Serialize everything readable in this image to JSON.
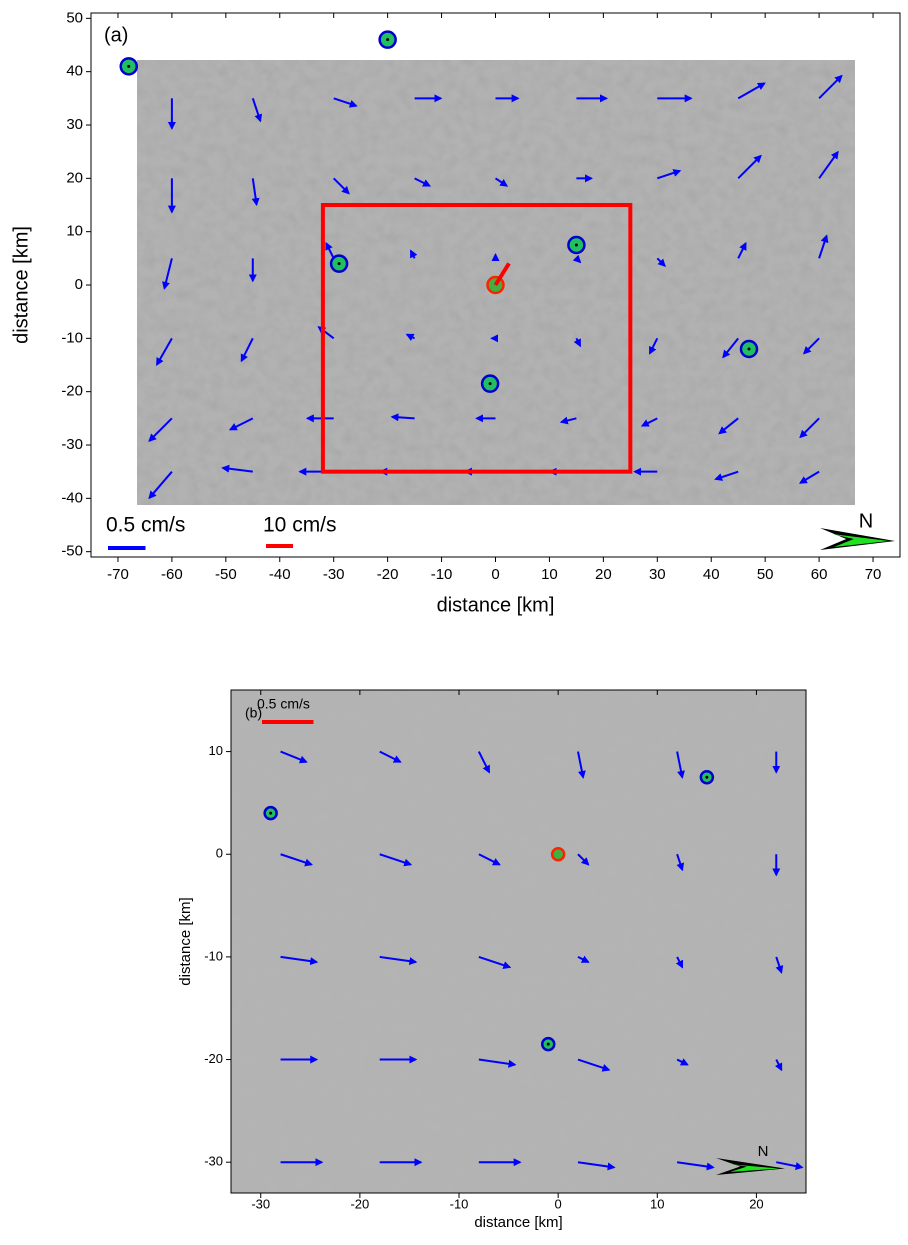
{
  "chart_data": [
    {
      "type": "quiver",
      "title": "(a)",
      "x_label": "distance [km]",
      "y_label": "distance [km]",
      "xlim": [
        -75,
        75
      ],
      "ylim": [
        -51,
        51
      ],
      "xticks": [
        -70,
        -60,
        -50,
        -40,
        -30,
        -20,
        -10,
        0,
        10,
        20,
        30,
        40,
        50,
        60,
        70
      ],
      "yticks": [
        -50,
        -40,
        -30,
        -20,
        -10,
        0,
        10,
        20,
        30,
        40,
        50
      ],
      "vectors": {
        "color": "#0000ff",
        "x": [
          -60,
          -45,
          -30,
          -15,
          0,
          15,
          30,
          45,
          60,
          -60,
          -45,
          -30,
          -15,
          0,
          15,
          30,
          45,
          60,
          -60,
          -45,
          -30,
          -15,
          0,
          15,
          30,
          45,
          60,
          -60,
          -45,
          -30,
          -15,
          0,
          15,
          30,
          45,
          60,
          -60,
          -45,
          -30,
          -15,
          0,
          15,
          30,
          45,
          60,
          -60,
          -45,
          -30,
          -15,
          0,
          15,
          30,
          45,
          60
        ],
        "y": [
          35,
          35,
          35,
          35,
          35,
          35,
          35,
          35,
          35,
          20,
          20,
          20,
          20,
          20,
          20,
          20,
          20,
          20,
          5,
          5,
          5,
          5,
          5,
          5,
          5,
          5,
          5,
          -10,
          -10,
          -10,
          -10,
          -10,
          -10,
          -10,
          -10,
          -10,
          -25,
          -25,
          -25,
          -25,
          -25,
          -25,
          -25,
          -25,
          -25,
          -35,
          -35,
          -35,
          -35,
          -35,
          -35,
          -35,
          -35,
          -35
        ],
        "u": [
          0,
          0.1,
          0.3,
          0.35,
          0.3,
          0.4,
          0.45,
          0.35,
          0.3,
          0,
          0.05,
          0.2,
          0.2,
          0.15,
          0.2,
          0.3,
          0.3,
          0.25,
          -0.1,
          0,
          -0.1,
          -0.05,
          0,
          0.05,
          0.1,
          0.1,
          0.1,
          -0.2,
          -0.15,
          -0.2,
          -0.1,
          -0.05,
          0.05,
          -0.1,
          -0.2,
          -0.2,
          -0.3,
          -0.3,
          -0.35,
          -0.3,
          -0.25,
          -0.2,
          -0.2,
          -0.25,
          -0.25,
          -0.3,
          -0.4,
          -0.45,
          -0.45,
          -0.4,
          -0.35,
          -0.3,
          -0.3,
          -0.25
        ],
        "v": [
          -0.4,
          -0.3,
          -0.1,
          0,
          0,
          0,
          0,
          0.2,
          0.3,
          -0.45,
          -0.35,
          -0.2,
          -0.1,
          -0.1,
          0,
          0.1,
          0.3,
          0.35,
          -0.4,
          -0.3,
          0.2,
          0.1,
          0.05,
          -0.05,
          -0.1,
          0.2,
          0.3,
          -0.35,
          -0.3,
          0.15,
          0.05,
          0,
          -0.1,
          -0.2,
          -0.25,
          -0.2,
          -0.3,
          -0.15,
          0,
          0.02,
          0,
          -0.05,
          -0.1,
          -0.2,
          -0.25,
          -0.35,
          0.05,
          0,
          0,
          0,
          0,
          0,
          -0.1,
          -0.15
        ]
      },
      "current": {
        "color": "#ff0000",
        "x": 0,
        "y": 0,
        "u": 5,
        "v": 8
      },
      "box": {
        "color": "#ff0000",
        "x": [
          -32,
          25
        ],
        "y": [
          -35,
          15
        ]
      },
      "stations": {
        "x": [
          -68,
          -20,
          -29,
          15,
          47,
          -1
        ],
        "y": [
          41,
          46,
          4,
          7.5,
          -12,
          -18.5
        ]
      },
      "reference_station": {
        "x": 0,
        "y": 0
      },
      "scale_bars": [
        {
          "value": 0.5,
          "label": "0.5 cm/s",
          "color": "#0000ff"
        },
        {
          "value": 10,
          "label": "10 cm/s",
          "color": "#ff0000"
        }
      ],
      "north_label": "N"
    },
    {
      "type": "quiver",
      "title": "(b)",
      "x_label": "distance [km]",
      "y_label": "distance [km]",
      "xlim": [
        -33,
        25
      ],
      "ylim": [
        -33,
        16
      ],
      "xticks": [
        -30,
        -20,
        -10,
        0,
        10,
        20
      ],
      "yticks": [
        -30,
        -20,
        -10,
        0,
        10
      ],
      "vectors": {
        "color": "#0000ff",
        "x": [
          -28,
          -18,
          -8,
          2,
          12,
          22,
          -28,
          -18,
          -8,
          2,
          12,
          22,
          -28,
          -18,
          -8,
          2,
          12,
          22,
          -28,
          -18,
          -8,
          2,
          12,
          22,
          -28,
          -18,
          -8,
          2,
          12,
          22
        ],
        "y": [
          10,
          10,
          10,
          10,
          10,
          10,
          0,
          0,
          0,
          0,
          0,
          0,
          -10,
          -10,
          -10,
          -10,
          -10,
          -10,
          -20,
          -20,
          -20,
          -20,
          -20,
          -20,
          -30,
          -30,
          -30,
          -30,
          -30,
          -30
        ],
        "u": [
          0.25,
          0.2,
          0.1,
          0.05,
          0.05,
          0,
          0.3,
          0.3,
          0.2,
          0.1,
          0.05,
          0,
          0.35,
          0.35,
          0.3,
          0.1,
          0.05,
          0.05,
          0.35,
          0.35,
          0.35,
          0.3,
          0.1,
          0.05,
          0.4,
          0.4,
          0.4,
          0.35,
          0.35,
          0.25
        ],
        "v": [
          -0.1,
          -0.1,
          -0.2,
          -0.25,
          -0.25,
          -0.2,
          -0.1,
          -0.1,
          -0.1,
          -0.1,
          -0.15,
          -0.2,
          -0.05,
          -0.05,
          -0.1,
          -0.05,
          -0.1,
          -0.15,
          0,
          0,
          -0.05,
          -0.1,
          -0.05,
          -0.1,
          0,
          0,
          0,
          -0.05,
          -0.05,
          -0.05
        ]
      },
      "stations": {
        "x": [
          -29,
          15,
          -1
        ],
        "y": [
          4,
          7.5,
          -18.5
        ]
      },
      "reference_station": {
        "x": 0,
        "y": 0
      },
      "scale_bars": [
        {
          "value": 0.5,
          "label": "0.5 cm/s",
          "color": "#ff0000"
        }
      ],
      "north_label": "N"
    }
  ]
}
